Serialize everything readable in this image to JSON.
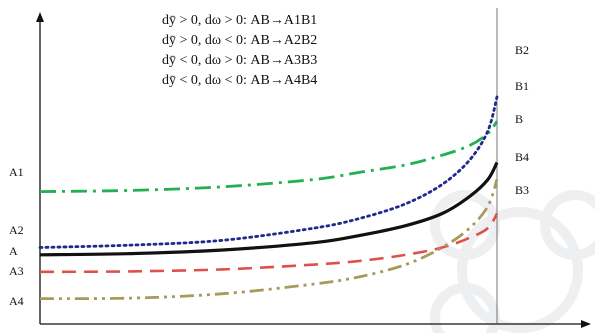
{
  "chart_data": {
    "type": "line",
    "title": "",
    "xlabel": "",
    "ylabel": "",
    "legend_placement": "top-center",
    "legend_lines": [
      "dȳ > 0, dω > 0: AB→A1B1",
      "dȳ > 0, dω < 0: AB→A2B2",
      "dȳ < 0, dω > 0: AB→A3B3",
      "dȳ < 0, dω < 0: AB→A4B4"
    ],
    "x_range": [
      0,
      1
    ],
    "y_range": [
      0,
      1
    ],
    "series": [
      {
        "name": "AB",
        "left_label": "A",
        "right_label": "B",
        "color": "#111111",
        "dash": "solid",
        "x": [
          0,
          0.2,
          0.4,
          0.6,
          0.7,
          0.8,
          0.88,
          0.94,
          0.98,
          1.0
        ],
        "y": [
          0.19,
          0.195,
          0.21,
          0.24,
          0.27,
          0.31,
          0.36,
          0.43,
          0.5,
          0.57
        ]
      },
      {
        "name": "A1B1",
        "left_label": "A1",
        "right_label": "B1",
        "color": "#22b050",
        "dash": "dashdot",
        "x": [
          0,
          0.2,
          0.4,
          0.6,
          0.7,
          0.8,
          0.88,
          0.94,
          0.98,
          1.0
        ],
        "y": [
          0.45,
          0.455,
          0.47,
          0.5,
          0.53,
          0.56,
          0.6,
          0.64,
          0.69,
          0.74
        ]
      },
      {
        "name": "A2B2",
        "left_label": "A2",
        "right_label": "B2",
        "color": "#1f2a8a",
        "dash": "dotted",
        "x": [
          0,
          0.2,
          0.4,
          0.6,
          0.7,
          0.8,
          0.88,
          0.94,
          0.98,
          1.0
        ],
        "y": [
          0.22,
          0.23,
          0.25,
          0.3,
          0.34,
          0.4,
          0.48,
          0.58,
          0.7,
          0.84
        ]
      },
      {
        "name": "A3B3",
        "left_label": "A3",
        "right_label": "B3",
        "color": "#e0504a",
        "dash": "dashed",
        "x": [
          0,
          0.2,
          0.4,
          0.6,
          0.7,
          0.8,
          0.88,
          0.94,
          0.98,
          1.0
        ],
        "y": [
          0.12,
          0.122,
          0.13,
          0.15,
          0.165,
          0.19,
          0.22,
          0.26,
          0.3,
          0.36
        ]
      },
      {
        "name": "A4B4",
        "left_label": "A4",
        "right_label": "B4",
        "color": "#a89a5a",
        "dash": "dashdotdot",
        "x": [
          0,
          0.2,
          0.4,
          0.6,
          0.7,
          0.8,
          0.88,
          0.94,
          0.98,
          1.0
        ],
        "y": [
          0.01,
          0.012,
          0.03,
          0.07,
          0.1,
          0.15,
          0.22,
          0.3,
          0.39,
          0.5
        ]
      }
    ]
  }
}
